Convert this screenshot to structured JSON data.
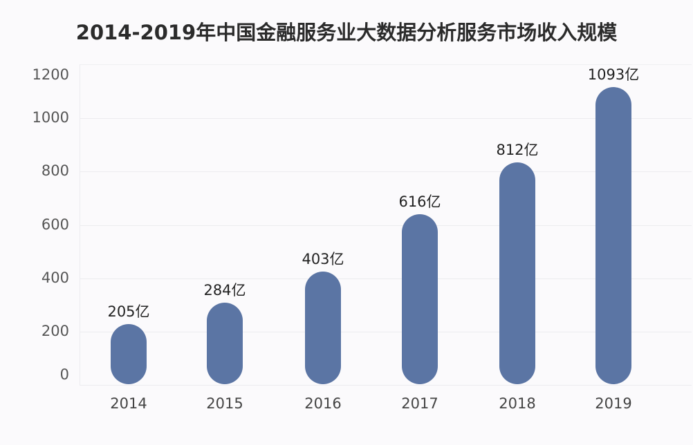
{
  "chart_data": {
    "type": "bar",
    "title": "2014-2019年中国金融服务业大数据分析服务市场收入规模",
    "categories": [
      "2014",
      "2015",
      "2016",
      "2017",
      "2018",
      "2019"
    ],
    "values": [
      205,
      284,
      403,
      616,
      812,
      1093
    ],
    "data_labels": [
      "205亿",
      "284亿",
      "403亿",
      "616亿",
      "812亿",
      "1093亿"
    ],
    "unit": "亿",
    "xlabel": "",
    "ylabel": "",
    "ylim": [
      0,
      1200
    ],
    "yticks": [
      "0",
      "200",
      "400",
      "600",
      "800",
      "1000",
      "1200"
    ],
    "grid": true,
    "legend": "none",
    "bar_color": "#5b75a4",
    "bar_style": "rounded"
  }
}
